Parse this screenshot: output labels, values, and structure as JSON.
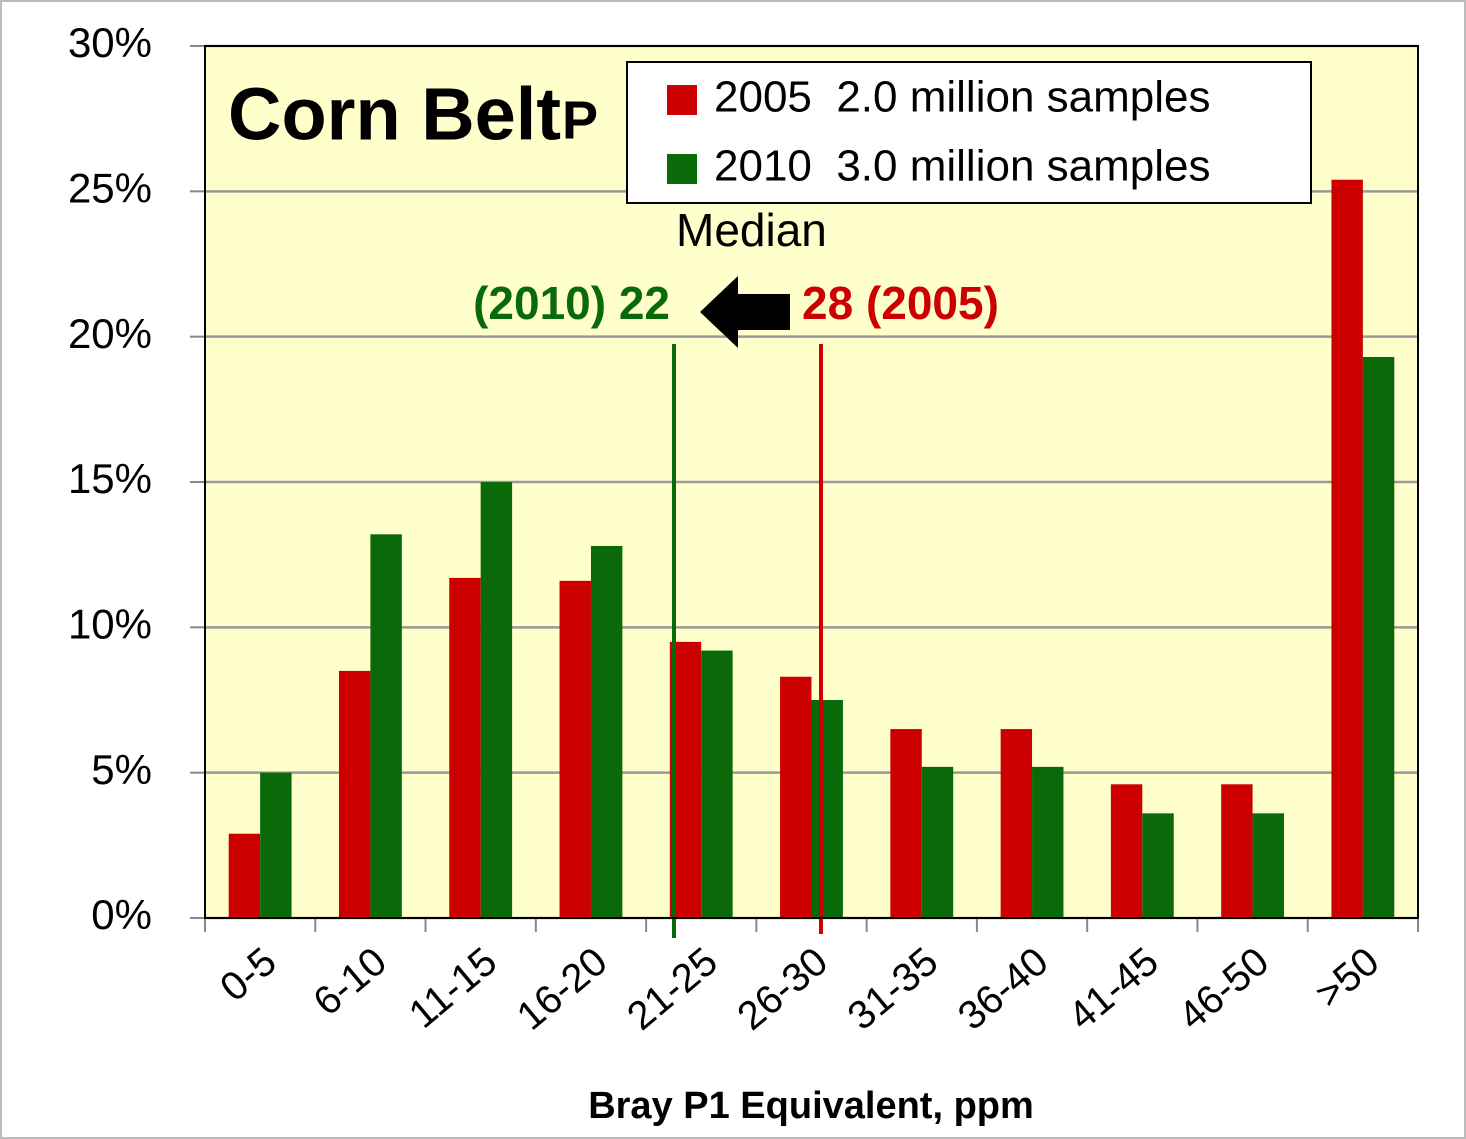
{
  "chart_data": {
    "type": "bar",
    "title": "Corn Belt",
    "subtitle": "P",
    "x_label": "Bray P1 Equivalent, ppm",
    "annotations": {
      "median": "Median",
      "median_2010": "(2010) 22",
      "median_2005": "28 (2005)"
    },
    "categories": [
      "0-5",
      "6-10",
      "11-15",
      "16-20",
      "21-25",
      "26-30",
      "31-35",
      "36-40",
      "41-45",
      "46-50",
      ">50"
    ],
    "series": [
      {
        "name": "2005  2.0 million samples",
        "color": "#cc0000",
        "values": [
          2.9,
          8.5,
          11.7,
          11.6,
          9.5,
          8.3,
          6.5,
          6.5,
          4.6,
          4.6,
          25.4
        ]
      },
      {
        "name": "2010  3.0 million samples",
        "color": "#0a6a0a",
        "values": [
          5.0,
          13.2,
          15.0,
          12.8,
          9.2,
          7.5,
          5.2,
          5.2,
          3.6,
          3.6,
          19.3
        ]
      }
    ],
    "ylim": [
      0,
      30
    ],
    "yticks": [
      {
        "value": 0,
        "label": "0%"
      },
      {
        "value": 5,
        "label": "5%"
      },
      {
        "value": 10,
        "label": "10%"
      },
      {
        "value": 15,
        "label": "15%"
      },
      {
        "value": 20,
        "label": "20%"
      },
      {
        "value": 25,
        "label": "25%"
      },
      {
        "value": 30,
        "label": "30%"
      }
    ],
    "grid": true
  }
}
